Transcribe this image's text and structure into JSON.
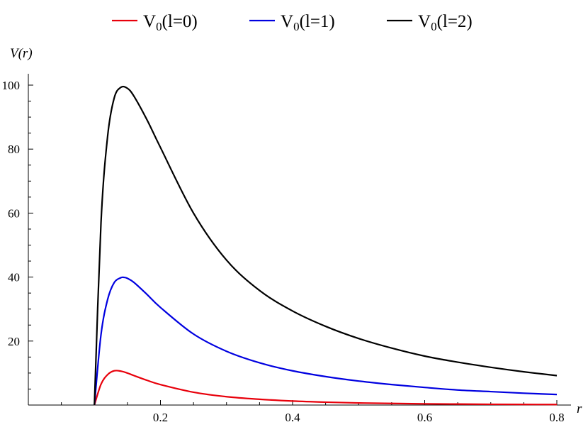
{
  "chart_data": {
    "type": "line",
    "title": "",
    "xlabel": "r",
    "ylabel": "V(r)",
    "xlim": [
      0.0,
      0.8
    ],
    "ylim": [
      0,
      100
    ],
    "x_ticks": [
      0.2,
      0.4,
      0.6,
      0.8
    ],
    "x_tick_labels": [
      "0.2",
      "0.4",
      "0.6",
      "0.8"
    ],
    "y_ticks": [
      20,
      40,
      60,
      80,
      100
    ],
    "y_tick_labels": [
      "20",
      "40",
      "60",
      "80",
      "100"
    ],
    "grid": false,
    "legend_position": "top",
    "series": [
      {
        "name": "V0(l=0)",
        "legend_main": "V",
        "legend_sub": "0",
        "legend_rest": "(l=0)",
        "color": "#e8000b",
        "x": [
          0.1,
          0.11,
          0.12,
          0.13,
          0.14,
          0.15,
          0.16,
          0.18,
          0.2,
          0.25,
          0.3,
          0.35,
          0.4,
          0.45,
          0.5,
          0.55,
          0.6,
          0.65,
          0.7,
          0.75,
          0.8
        ],
        "y": [
          0,
          6.5,
          9.5,
          10.7,
          10.6,
          10.0,
          9.2,
          7.7,
          6.4,
          4.0,
          2.6,
          1.8,
          1.25,
          0.9,
          0.65,
          0.5,
          0.38,
          0.3,
          0.24,
          0.2,
          0.16
        ]
      },
      {
        "name": "V0(l=1)",
        "legend_main": "V",
        "legend_sub": "0",
        "legend_rest": "(l=1)",
        "color": "#0000e0",
        "x": [
          0.1,
          0.11,
          0.12,
          0.13,
          0.14,
          0.145,
          0.15,
          0.16,
          0.18,
          0.2,
          0.25,
          0.3,
          0.35,
          0.4,
          0.45,
          0.5,
          0.55,
          0.6,
          0.65,
          0.7,
          0.75,
          0.8
        ],
        "y": [
          0,
          22,
          33,
          38.3,
          39.8,
          39.9,
          39.6,
          38.3,
          34.5,
          30.5,
          22.2,
          16.8,
          13.2,
          10.7,
          8.9,
          7.5,
          6.4,
          5.5,
          4.7,
          4.2,
          3.7,
          3.3
        ]
      },
      {
        "name": "V0(l=2)",
        "legend_main": "V",
        "legend_sub": "0",
        "legend_rest": "(l=2)",
        "color": "#000000",
        "x": [
          0.1,
          0.11,
          0.12,
          0.13,
          0.14,
          0.15,
          0.16,
          0.18,
          0.2,
          0.25,
          0.3,
          0.35,
          0.4,
          0.45,
          0.5,
          0.55,
          0.6,
          0.65,
          0.7,
          0.75,
          0.8
        ],
        "y": [
          0,
          57,
          84,
          96,
          99.3,
          99,
          96.5,
          89,
          80.5,
          60,
          45.3,
          35.8,
          29.4,
          24.6,
          20.8,
          17.8,
          15.3,
          13.4,
          11.8,
          10.4,
          9.2
        ]
      }
    ]
  }
}
